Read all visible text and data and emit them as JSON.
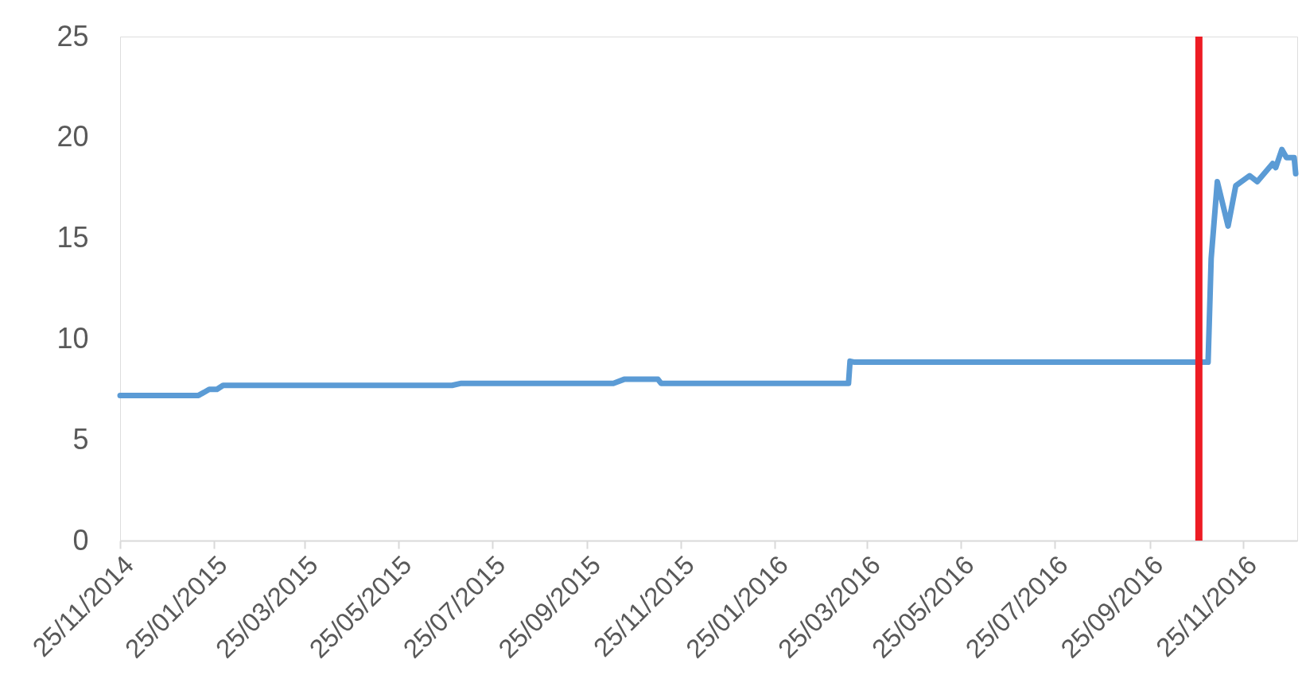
{
  "chart_data": {
    "type": "line",
    "grid": false,
    "x": [
      "2014-11-25",
      "2015-01-15",
      "2015-01-22",
      "2015-01-27",
      "2015-01-31",
      "2015-06-29",
      "2015-07-05",
      "2015-10-12",
      "2015-10-19",
      "2015-11-10",
      "2015-11-12",
      "2016-03-13",
      "2016-03-14",
      "2016-03-17",
      "2016-11-02",
      "2016-11-04",
      "2016-11-08",
      "2016-11-15",
      "2016-11-20",
      "2016-11-29",
      "2016-12-04",
      "2016-12-14",
      "2016-12-16",
      "2016-12-20",
      "2016-12-23",
      "2016-12-28",
      "2016-12-29"
    ],
    "series": [
      {
        "color": "#5b9bd5",
        "values": [
          7.2,
          7.2,
          7.5,
          7.5,
          7.7,
          7.7,
          7.8,
          7.8,
          8.0,
          8.0,
          7.8,
          7.8,
          8.9,
          8.85,
          8.85,
          14.0,
          17.8,
          15.6,
          17.6,
          18.1,
          17.8,
          18.7,
          18.5,
          19.4,
          19.0,
          19.0,
          18.2
        ]
      }
    ],
    "xlim": [
      "2014-11-25",
      "2016-12-30"
    ],
    "xticks": [
      {
        "value": "2014-11-25",
        "label": "25/11/2014"
      },
      {
        "value": "2015-01-25",
        "label": "25/01/2015"
      },
      {
        "value": "2015-03-25",
        "label": "25/03/2015"
      },
      {
        "value": "2015-05-25",
        "label": "25/05/2015"
      },
      {
        "value": "2015-07-25",
        "label": "25/07/2015"
      },
      {
        "value": "2015-09-25",
        "label": "25/09/2015"
      },
      {
        "value": "2015-11-25",
        "label": "25/11/2015"
      },
      {
        "value": "2016-01-25",
        "label": "25/01/2016"
      },
      {
        "value": "2016-03-25",
        "label": "25/03/2016"
      },
      {
        "value": "2016-05-25",
        "label": "25/05/2016"
      },
      {
        "value": "2016-07-25",
        "label": "25/07/2016"
      },
      {
        "value": "2016-09-25",
        "label": "25/09/2016"
      },
      {
        "value": "2016-11-25",
        "label": "25/11/2016"
      }
    ],
    "ylim": [
      0,
      25
    ],
    "yticks": [
      0,
      5,
      10,
      15,
      20,
      25
    ],
    "ref_lines": [
      {
        "axis": "x",
        "value": "2016-10-27",
        "color": "#ed1c24"
      }
    ]
  }
}
